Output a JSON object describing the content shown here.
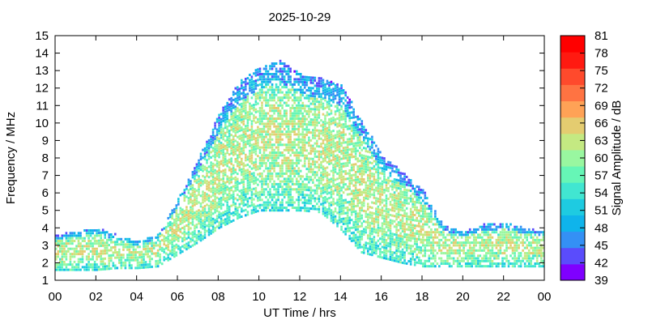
{
  "chart_data": {
    "type": "heatmap",
    "title": "2025-10-29",
    "xlabel": "UT Time / hrs",
    "ylabel": "Frequency / MHz",
    "colorbar_label": "Signal Amplitude / dB",
    "xlim": [
      0,
      24
    ],
    "ylim": [
      1,
      15
    ],
    "x_ticks": [
      "00",
      "02",
      "04",
      "06",
      "08",
      "10",
      "12",
      "14",
      "16",
      "18",
      "20",
      "22",
      "00"
    ],
    "y_ticks": [
      "1",
      "2",
      "3",
      "4",
      "5",
      "6",
      "7",
      "8",
      "9",
      "10",
      "11",
      "12",
      "13",
      "14",
      "15"
    ],
    "colorbar_range": [
      39,
      81
    ],
    "colorbar_ticks": [
      "39",
      "42",
      "45",
      "48",
      "51",
      "54",
      "57",
      "60",
      "63",
      "66",
      "69",
      "72",
      "75",
      "78",
      "81"
    ],
    "colorbar_colors": [
      "#7f00ff",
      "#5a4cfc",
      "#3490f5",
      "#0fb4eb",
      "#1ecbe1",
      "#41e6d1",
      "#66f6b6",
      "#99f7a0",
      "#c4e982",
      "#e4cc70",
      "#ffa256",
      "#ff7342",
      "#ff4a2c",
      "#ff1a11",
      "#ff0000"
    ],
    "grid": false,
    "amplitude_envelope": [
      {
        "t": 0,
        "fmin": 1.6,
        "fmax": 3.6
      },
      {
        "t": 1,
        "fmin": 1.6,
        "fmax": 3.8
      },
      {
        "t": 2,
        "fmin": 1.6,
        "fmax": 4.0
      },
      {
        "t": 3,
        "fmin": 1.7,
        "fmax": 3.6
      },
      {
        "t": 4,
        "fmin": 1.7,
        "fmax": 3.2
      },
      {
        "t": 5,
        "fmin": 1.8,
        "fmax": 3.6
      },
      {
        "t": 6,
        "fmin": 2.5,
        "fmax": 5.8
      },
      {
        "t": 7,
        "fmin": 3.2,
        "fmax": 8.0
      },
      {
        "t": 8,
        "fmin": 4.0,
        "fmax": 10.5
      },
      {
        "t": 9,
        "fmin": 4.6,
        "fmax": 12.4
      },
      {
        "t": 10,
        "fmin": 5.0,
        "fmax": 13.2
      },
      {
        "t": 11,
        "fmin": 5.0,
        "fmax": 13.6
      },
      {
        "t": 12,
        "fmin": 5.0,
        "fmax": 12.8
      },
      {
        "t": 13,
        "fmin": 4.9,
        "fmax": 12.6
      },
      {
        "t": 14,
        "fmin": 3.9,
        "fmax": 12.2
      },
      {
        "t": 15,
        "fmin": 2.6,
        "fmax": 10.2
      },
      {
        "t": 16,
        "fmin": 2.3,
        "fmax": 8.2
      },
      {
        "t": 17,
        "fmin": 2.0,
        "fmax": 7.2
      },
      {
        "t": 18,
        "fmin": 1.8,
        "fmax": 6.2
      },
      {
        "t": 19,
        "fmin": 1.8,
        "fmax": 4.2
      },
      {
        "t": 20,
        "fmin": 1.8,
        "fmax": 3.8
      },
      {
        "t": 21,
        "fmin": 1.8,
        "fmax": 4.2
      },
      {
        "t": 22,
        "fmin": 1.8,
        "fmax": 4.3
      },
      {
        "t": 23,
        "fmin": 1.8,
        "fmax": 4.0
      },
      {
        "t": 24,
        "fmin": 1.8,
        "fmax": 3.8
      }
    ]
  }
}
